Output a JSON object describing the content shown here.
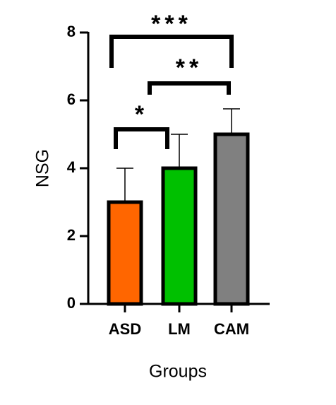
{
  "chart_data": {
    "type": "bar",
    "categories": [
      "ASD",
      "LM",
      "CAM"
    ],
    "values": [
      3,
      4,
      5
    ],
    "errors": [
      1,
      1,
      0.75
    ],
    "colors": [
      "#ff6600",
      "#00c000",
      "#808080"
    ],
    "ylabel": "NSG",
    "xlabel": "Groups",
    "ylim": [
      0,
      8
    ],
    "yticks": [
      0,
      2,
      4,
      6,
      8
    ],
    "annotations": [
      "*",
      "**",
      "***"
    ]
  }
}
